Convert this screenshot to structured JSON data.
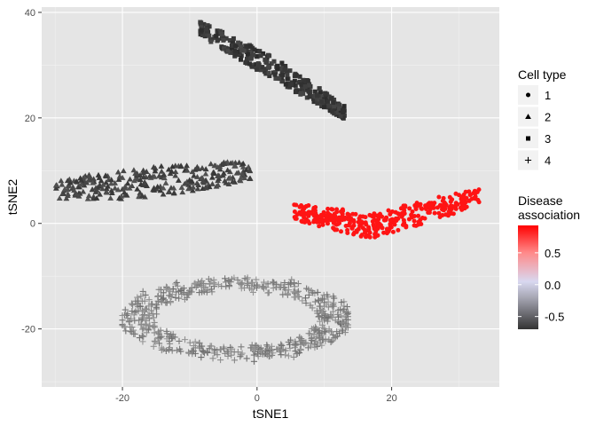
{
  "chart_data": {
    "type": "scatter",
    "title": "",
    "xlabel": "tSNE1",
    "ylabel": "tSNE2",
    "xlim": [
      -32,
      36
    ],
    "ylim": [
      -31,
      41
    ],
    "x_ticks": [
      -20,
      0,
      20
    ],
    "y_ticks": [
      -20,
      0,
      20,
      40
    ],
    "x_tick_labels": [
      "-20",
      "0",
      "20"
    ],
    "y_tick_labels": [
      "-20",
      "0",
      "20",
      "40"
    ],
    "grid": true,
    "panel_background": "#e5e5e5",
    "grid_color": "#ffffff",
    "shape_legend": {
      "title": "Cell type",
      "items": [
        {
          "label": "1",
          "shape": "circle"
        },
        {
          "label": "2",
          "shape": "triangle"
        },
        {
          "label": "3",
          "shape": "square"
        },
        {
          "label": "4",
          "shape": "plus"
        }
      ]
    },
    "color_legend": {
      "title_lines": [
        "Disease",
        "association"
      ],
      "tick_values": [
        0.5,
        0.0,
        -0.5
      ],
      "tick_labels": [
        "0.5",
        "0.0",
        "-0.5"
      ],
      "range": [
        -0.7,
        0.93
      ],
      "gradient": [
        {
          "value": -0.7,
          "color": "#333333"
        },
        {
          "value": -0.2,
          "color": "#a7a7b4"
        },
        {
          "value": 0.05,
          "color": "#d8d8f0"
        },
        {
          "value": 0.5,
          "color": "#ff8a8a"
        },
        {
          "value": 0.93,
          "color": "#ff0000"
        }
      ]
    },
    "clusters": [
      {
        "cell_type": "1",
        "shape": "circle",
        "color": "#ff1414",
        "n": 360,
        "center": [
          19.5,
          1.5
        ],
        "trend": [
          [
            5.5,
            2.2
          ],
          [
            17,
            -0.5
          ],
          [
            33,
            5.0
          ]
        ],
        "half_width": 2.4,
        "mode": "band"
      },
      {
        "cell_type": "2",
        "shape": "triangle",
        "color": "#454545",
        "n": 280,
        "center": [
          -11,
          7.5
        ],
        "trend": [
          [
            -30,
            6.5
          ],
          [
            -18,
            7.5
          ],
          [
            -1,
            10.0
          ]
        ],
        "half_width": 2.8,
        "mode": "band"
      },
      {
        "cell_type": "3",
        "shape": "square",
        "color": "#383838",
        "n": 340,
        "center": [
          2.5,
          29
        ],
        "trend": [
          [
            -8.5,
            37
          ],
          [
            3,
            29
          ],
          [
            13,
            21
          ]
        ],
        "half_width": 2.0,
        "mode": "band"
      },
      {
        "cell_type": "4",
        "shape": "plus",
        "color": "#7a7a7a",
        "n": 560,
        "center": [
          -3,
          -18
        ],
        "rx": 19.5,
        "ry": 7.5,
        "x_range": [
          -20,
          13.5
        ],
        "mode": "ring"
      }
    ]
  }
}
